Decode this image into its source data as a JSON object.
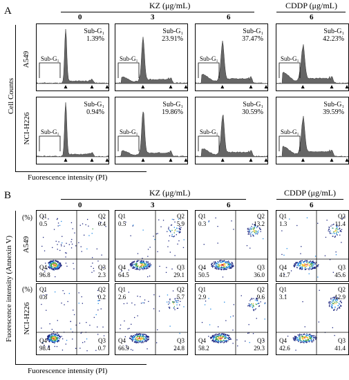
{
  "panel_a": {
    "letter": "A",
    "kz_header": "KZ (μg/mL)",
    "cddp_header": "CDDP (μg/mL)",
    "columns": [
      "0",
      "3",
      "6",
      "6"
    ],
    "rows": [
      "A549",
      "NCI-H226"
    ],
    "y_title": "Cell Counts",
    "x_title": "Fuorescence intensity (PI)",
    "gate_label": "Sub-G₁",
    "stat_label": "Sub-G₁",
    "values": [
      [
        "1.39%",
        "23.91%",
        "37.47%",
        "42.23%"
      ],
      [
        "0.94%",
        "19.86%",
        "30.59%",
        "39.59%"
      ]
    ]
  },
  "panel_b": {
    "letter": "B",
    "kz_header": "KZ (μg/mL)",
    "cddp_header": "CDDP (μg/mL)",
    "columns": [
      "0",
      "3",
      "6",
      "6"
    ],
    "rows": [
      "A549",
      "NCI-H226"
    ],
    "y_title": "Fuorescence intensity (Annexin V)",
    "x_title": "Fuorescence intensity (PI)",
    "percent_label": "(%)",
    "quadrant_names": [
      "Q1",
      "Q2",
      "Q3",
      "Q4"
    ],
    "values": [
      [
        [
          "0.5",
          "0.4",
          "2.3",
          "96.8"
        ],
        [
          "0.5",
          "5.9",
          "29.1",
          "64.5"
        ],
        [
          "0.3",
          "13.2",
          "36.0",
          "50.5"
        ],
        [
          "1.3",
          "11.4",
          "45.6",
          "41.7"
        ]
      ],
      [
        [
          "0.8",
          "0.2",
          "0.7",
          "98.4"
        ],
        [
          "2.6",
          "5.7",
          "24.8",
          "66.9"
        ],
        [
          "2.9",
          "9.6",
          "29.3",
          "58.2"
        ],
        [
          "3.1",
          "12.9",
          "41.4",
          "42.6"
        ]
      ]
    ]
  },
  "colors": {
    "histogram_fill": "#666666",
    "line": "#000000"
  }
}
